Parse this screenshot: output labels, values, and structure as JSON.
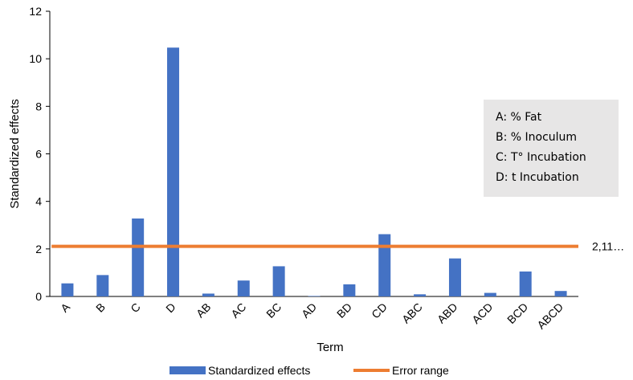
{
  "chart_data": {
    "type": "bar",
    "title": "",
    "xlabel": "Term",
    "ylabel": "Standardized effects",
    "ylim": [
      0,
      12
    ],
    "yticks": [
      0,
      2,
      4,
      6,
      8,
      10,
      12
    ],
    "grid": false,
    "categories": [
      "A",
      "B",
      "C",
      "D",
      "AB",
      "AC",
      "BC",
      "AD",
      "BD",
      "CD",
      "ABC",
      "ABD",
      "ACD",
      "BCD",
      "ABCD"
    ],
    "series": [
      {
        "name": "Standardized effects",
        "type": "bar",
        "color": "#4472C4",
        "values": [
          0.55,
          0.9,
          3.28,
          10.47,
          0.12,
          0.67,
          1.27,
          0.02,
          0.51,
          2.62,
          0.09,
          1.6,
          0.15,
          1.05,
          0.23
        ]
      },
      {
        "name": "Error range",
        "type": "line",
        "color": "#ED7D31",
        "value": 2.11,
        "end_label": "2,11…"
      }
    ],
    "legend_position": "bottom",
    "annotation": {
      "lines": [
        "A: % Fat",
        "B: % Inoculum",
        "C: T° Incubation",
        "D: t Incubation"
      ],
      "background": "#E7E6E6"
    }
  }
}
